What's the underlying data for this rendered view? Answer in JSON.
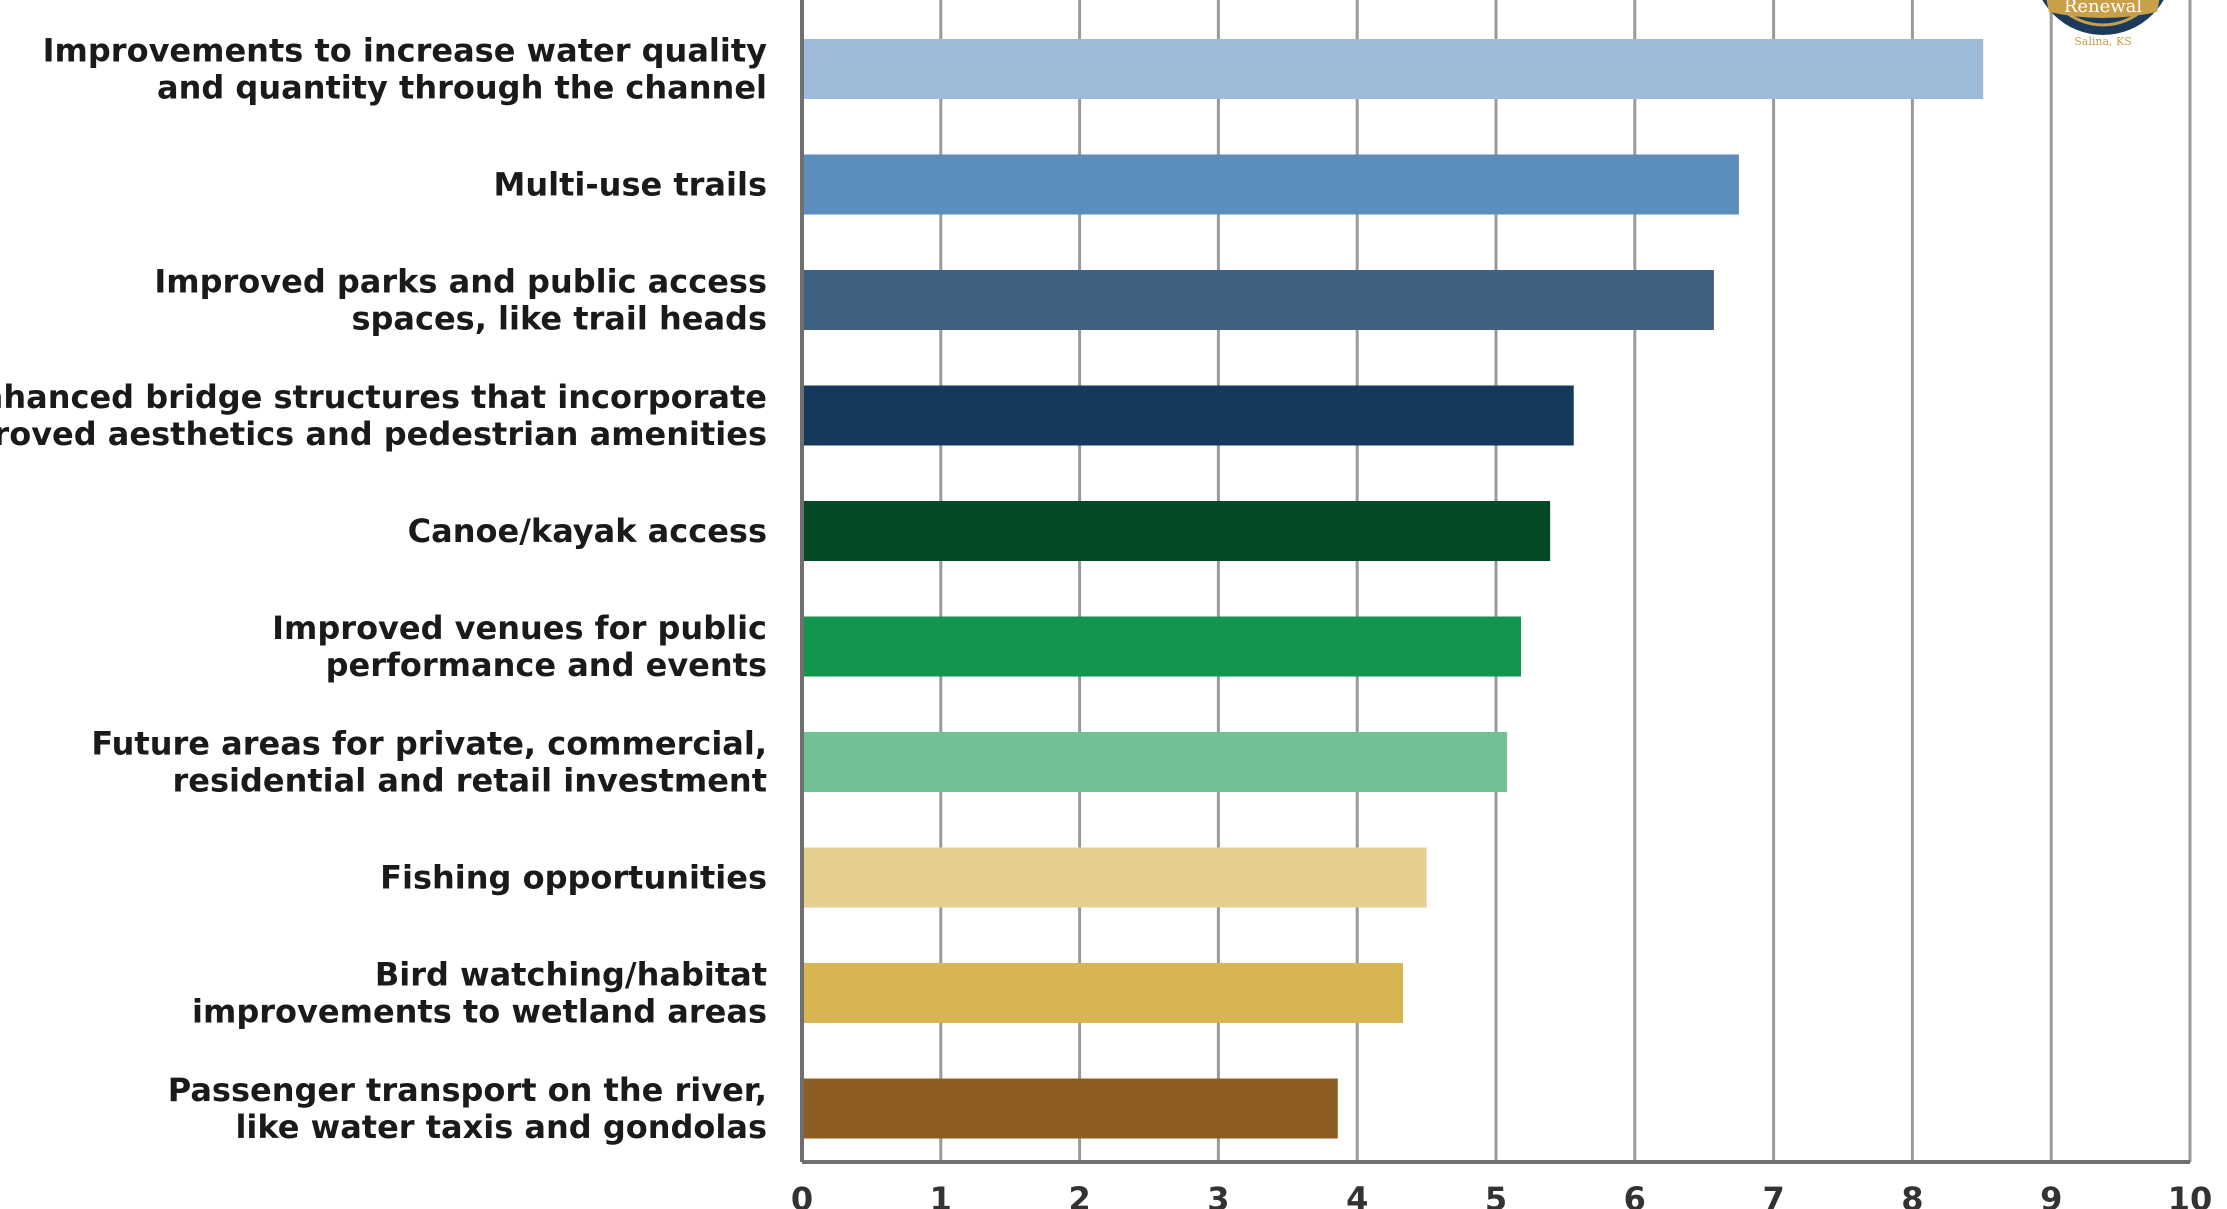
{
  "chart_data": {
    "type": "bar",
    "orientation": "horizontal",
    "title": "",
    "xlabel": "",
    "ylabel": "",
    "xlim": [
      0,
      10
    ],
    "x_ticks": [
      "0",
      "1",
      "2",
      "3",
      "4",
      "5",
      "6",
      "7",
      "8",
      "9",
      "10"
    ],
    "grid": "vertical",
    "categories": [
      [
        "Improvements to increase water quality",
        "and quantity through the channel"
      ],
      [
        "Multi-use trails"
      ],
      [
        "Improved parks and public access",
        "spaces, like trail heads"
      ],
      [
        "Enhanced bridge structures that incorporate",
        "improved aesthetics and pedestrian amenities"
      ],
      [
        "Canoe/kayak access"
      ],
      [
        "Improved venues for public",
        "performance and events"
      ],
      [
        "Future areas for private, commercial,",
        "residential and retail investment"
      ],
      [
        "Fishing opportunities"
      ],
      [
        "Bird watching/habitat",
        "improvements to wetland areas"
      ],
      [
        "Passenger transport on the river,",
        "like water taxis and gondolas"
      ]
    ],
    "values": [
      8.51,
      6.75,
      6.57,
      5.56,
      5.39,
      5.18,
      5.08,
      4.5,
      4.33,
      3.86
    ],
    "colors": [
      "#9dbbd9",
      "#5b8dbd",
      "#3f6181",
      "#14395c",
      "#034a25",
      "#12964f",
      "#70c194",
      "#e6cf8e",
      "#d9b552",
      "#8e5d22"
    ]
  },
  "logo": {
    "text": "Renewal",
    "subtext": "Salina, KS",
    "ring_color": "#1b3a5c",
    "accent_color": "#c9a04a"
  }
}
